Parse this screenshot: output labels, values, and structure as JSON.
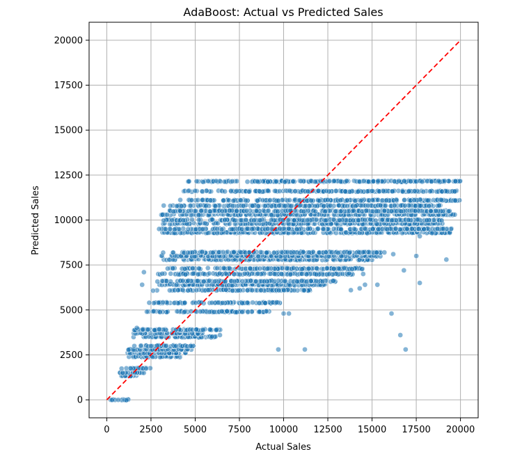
{
  "chart_data": {
    "type": "scatter",
    "title": "AdaBoost: Actual vs Predicted Sales",
    "xlabel": "Actual Sales",
    "ylabel": "Predicted Sales",
    "xlim": [
      -1000,
      21000
    ],
    "ylim": [
      -1000,
      21000
    ],
    "xticks": [
      0,
      2500,
      5000,
      7500,
      10000,
      12500,
      15000,
      17500,
      20000
    ],
    "yticks": [
      0,
      2500,
      5000,
      7500,
      10000,
      12500,
      15000,
      17500,
      20000
    ],
    "grid": true,
    "point_color": "#1f77b4",
    "reference_line": {
      "from": [
        0,
        0
      ],
      "to": [
        20000,
        20000
      ],
      "color": "#ff0000",
      "style": "dashed"
    },
    "bands": [
      {
        "y": 0,
        "x": [
          0,
          1300
        ]
      },
      {
        "y": 1350,
        "x": [
          400,
          1700
        ]
      },
      {
        "y": 1500,
        "x": [
          700,
          2100
        ]
      },
      {
        "y": 1750,
        "x": [
          800,
          2500
        ]
      },
      {
        "y": 2400,
        "x": [
          1000,
          4200
        ]
      },
      {
        "y": 2600,
        "x": [
          1000,
          4500
        ]
      },
      {
        "y": 2800,
        "x": [
          1100,
          4800
        ]
      },
      {
        "y": 3000,
        "x": [
          1500,
          5000
        ]
      },
      {
        "y": 3500,
        "x": [
          1400,
          6200
        ]
      },
      {
        "y": 3700,
        "x": [
          1500,
          5500
        ]
      },
      {
        "y": 3900,
        "x": [
          1400,
          6500
        ]
      },
      {
        "y": 4900,
        "x": [
          2200,
          9200
        ]
      },
      {
        "y": 5400,
        "x": [
          2400,
          10000
        ]
      },
      {
        "y": 6100,
        "x": [
          2500,
          11500
        ]
      },
      {
        "y": 6400,
        "x": [
          2700,
          12500
        ]
      },
      {
        "y": 6600,
        "x": [
          2800,
          13000
        ]
      },
      {
        "y": 7000,
        "x": [
          2900,
          14000
        ]
      },
      {
        "y": 7300,
        "x": [
          3000,
          14500
        ]
      },
      {
        "y": 7800,
        "x": [
          3000,
          15000
        ]
      },
      {
        "y": 8000,
        "x": [
          3000,
          15500
        ]
      },
      {
        "y": 8200,
        "x": [
          3100,
          15500
        ]
      },
      {
        "y": 9300,
        "x": [
          3000,
          19500
        ]
      },
      {
        "y": 9500,
        "x": [
          2900,
          19500
        ]
      },
      {
        "y": 9800,
        "x": [
          2900,
          19000
        ]
      },
      {
        "y": 10000,
        "x": [
          3000,
          19000
        ]
      },
      {
        "y": 10300,
        "x": [
          2900,
          19800
        ]
      },
      {
        "y": 10500,
        "x": [
          3200,
          19500
        ]
      },
      {
        "y": 10800,
        "x": [
          3200,
          19000
        ]
      },
      {
        "y": 11100,
        "x": [
          4000,
          20000
        ]
      },
      {
        "y": 11600,
        "x": [
          4200,
          19800
        ]
      },
      {
        "y": 12150,
        "x": [
          4500,
          20000
        ]
      }
    ],
    "outliers": [
      [
        2400,
        5400
      ],
      [
        2000,
        6400
      ],
      [
        2100,
        7100
      ],
      [
        1700,
        4000
      ],
      [
        9700,
        2800
      ],
      [
        11200,
        2800
      ],
      [
        10000,
        4800
      ],
      [
        10300,
        4800
      ],
      [
        13800,
        6100
      ],
      [
        14300,
        6200
      ],
      [
        14600,
        6400
      ],
      [
        15300,
        6400
      ],
      [
        14500,
        7000
      ],
      [
        15700,
        8200
      ],
      [
        16200,
        8100
      ],
      [
        16100,
        4800
      ],
      [
        16600,
        3600
      ],
      [
        16900,
        2800
      ],
      [
        16800,
        7200
      ],
      [
        17500,
        8000
      ],
      [
        17700,
        6500
      ],
      [
        19200,
        7800
      ],
      [
        17700,
        9100
      ],
      [
        6400,
        3600
      ]
    ]
  }
}
